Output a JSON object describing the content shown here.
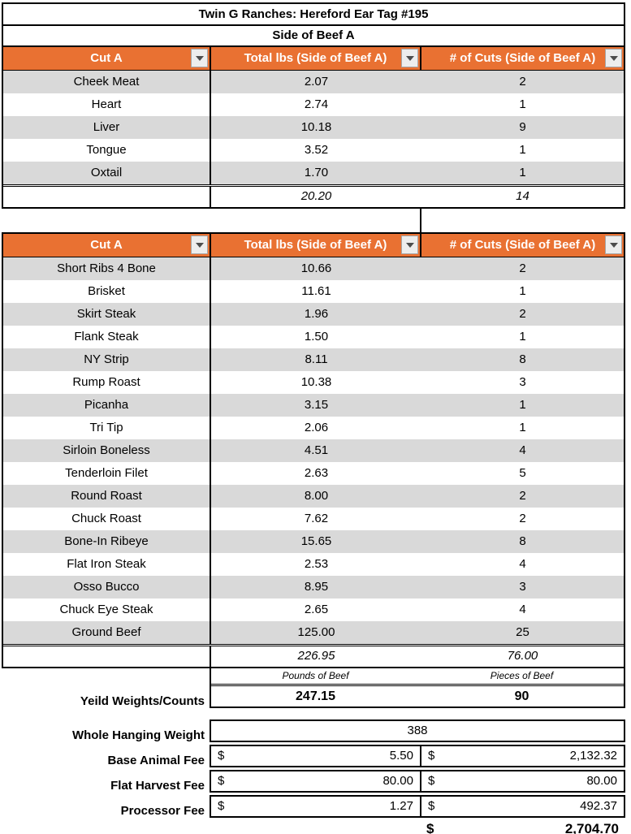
{
  "title": "Twin G Ranches: Hereford Ear Tag #195",
  "subtitle": "Side of Beef A",
  "columns": [
    "Cut A",
    "Total lbs (Side of Beef A)",
    "# of Cuts (Side of Beef A)"
  ],
  "tables": [
    {
      "rows": [
        [
          "Cheek Meat",
          "2.07",
          "2"
        ],
        [
          "Heart",
          "2.74",
          "1"
        ],
        [
          "Liver",
          "10.18",
          "9"
        ],
        [
          "Tongue",
          "3.52",
          "1"
        ],
        [
          "Oxtail",
          "1.70",
          "1"
        ]
      ],
      "total_lbs": "20.20",
      "total_cuts": "14"
    },
    {
      "rows": [
        [
          "Short Ribs 4 Bone",
          "10.66",
          "2"
        ],
        [
          "Brisket",
          "11.61",
          "1"
        ],
        [
          "Skirt Steak",
          "1.96",
          "2"
        ],
        [
          "Flank Steak",
          "1.50",
          "1"
        ],
        [
          "NY Strip",
          "8.11",
          "8"
        ],
        [
          "Rump Roast",
          "10.38",
          "3"
        ],
        [
          "Picanha",
          "3.15",
          "1"
        ],
        [
          "Tri Tip",
          "2.06",
          "1"
        ],
        [
          "Sirloin Boneless",
          "4.51",
          "4"
        ],
        [
          "Tenderloin Filet",
          "2.63",
          "5"
        ],
        [
          "Round Roast",
          "8.00",
          "2"
        ],
        [
          "Chuck Roast",
          "7.62",
          "2"
        ],
        [
          "Bone-In Ribeye",
          "15.65",
          "8"
        ],
        [
          "Flat Iron Steak",
          "2.53",
          "4"
        ],
        [
          "Osso Bucco",
          "8.95",
          "3"
        ],
        [
          "Chuck Eye Steak",
          "2.65",
          "4"
        ],
        [
          "Ground Beef",
          "125.00",
          "25"
        ]
      ],
      "total_lbs": "226.95",
      "total_cuts": "76.00"
    }
  ],
  "yield": {
    "pounds_label": "Pounds of Beef",
    "pieces_label": "Pieces of Beef",
    "row_label": "Yeild Weights/Counts",
    "pounds": "247.15",
    "pieces": "90"
  },
  "fees": {
    "hanging_weight_label": "Whole Hanging Weight",
    "hanging_weight": "388",
    "currency": "$",
    "rows": [
      {
        "label": "Base Animal Fee",
        "rate": "5.50",
        "amount": "2,132.32"
      },
      {
        "label": "Flat Harvest Fee",
        "rate": "80.00",
        "amount": "80.00"
      },
      {
        "label": "Processor Fee",
        "rate": "1.27",
        "amount": "492.37"
      }
    ],
    "total": "2,704.70"
  },
  "colors": {
    "header_bg": "#E97132",
    "band_gray": "#D9D9D9",
    "filter_button_bg": "#EDEDED"
  }
}
